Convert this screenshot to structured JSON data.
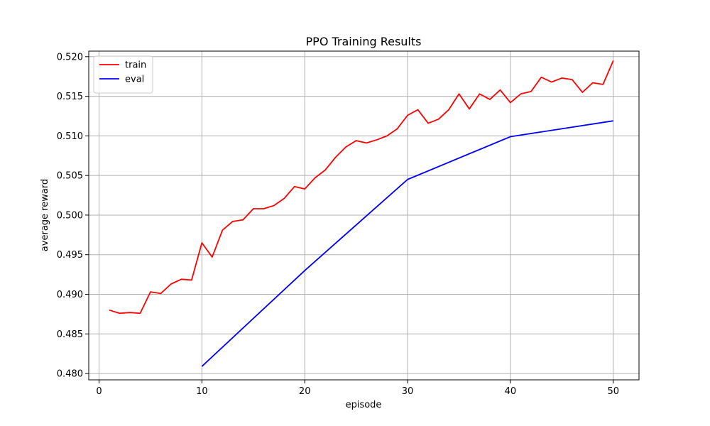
{
  "chart_data": {
    "type": "line",
    "title": "PPO Training Results",
    "xlabel": "episode",
    "ylabel": "average reward",
    "xlim": [
      -1.0,
      52.5
    ],
    "ylim": [
      0.4792,
      0.5207
    ],
    "xticks": [
      0,
      10,
      20,
      30,
      40,
      50
    ],
    "yticks": [
      0.48,
      0.485,
      0.49,
      0.495,
      0.5,
      0.505,
      0.51,
      0.515,
      0.52
    ],
    "grid": true,
    "legend_position": "top-left",
    "series": [
      {
        "name": "train",
        "color": "#ff0000",
        "x": [
          1,
          2,
          3,
          4,
          5,
          6,
          7,
          8,
          9,
          10,
          11,
          12,
          13,
          14,
          15,
          16,
          17,
          18,
          19,
          20,
          21,
          22,
          23,
          24,
          25,
          26,
          27,
          28,
          29,
          30,
          31,
          32,
          33,
          34,
          35,
          36,
          37,
          38,
          39,
          40,
          41,
          42,
          43,
          44,
          45,
          46,
          47,
          48,
          49,
          50
        ],
        "y": [
          0.488,
          0.4876,
          0.4877,
          0.4876,
          0.4903,
          0.4901,
          0.4913,
          0.4919,
          0.4918,
          0.4965,
          0.4947,
          0.4981,
          0.4992,
          0.4994,
          0.5008,
          0.5008,
          0.5012,
          0.5021,
          0.5036,
          0.5033,
          0.5047,
          0.5057,
          0.5073,
          0.5086,
          0.5094,
          0.5091,
          0.5095,
          0.51,
          0.5109,
          0.5126,
          0.5133,
          0.5116,
          0.5121,
          0.5133,
          0.5153,
          0.5134,
          0.5153,
          0.5146,
          0.5158,
          0.5142,
          0.5153,
          0.5156,
          0.5174,
          0.5168,
          0.5173,
          0.5171,
          0.5155,
          0.5167,
          0.5165,
          0.5195
        ]
      },
      {
        "name": "eval",
        "color": "#0000ff",
        "x": [
          10,
          20,
          30,
          40,
          50
        ],
        "y": [
          0.4809,
          0.493,
          0.5045,
          0.5099,
          0.5119
        ]
      }
    ]
  }
}
